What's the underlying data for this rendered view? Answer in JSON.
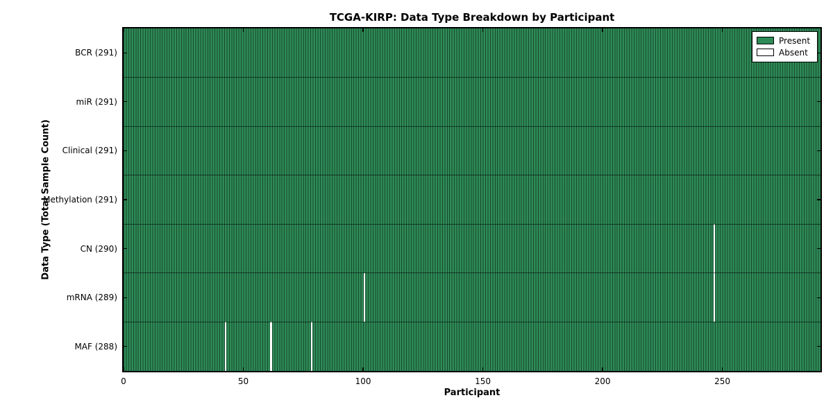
{
  "chart_data": {
    "type": "heatmap",
    "title": "TCGA-KIRP: Data Type Breakdown by Participant",
    "xlabel": "Participant",
    "ylabel": "Data Type (Total Sample Count)",
    "n_participants": 291,
    "xlim": [
      0,
      291
    ],
    "x_ticks": [
      0,
      50,
      100,
      150,
      200,
      250
    ],
    "grid": false,
    "legend": {
      "position": "upper right",
      "present_label": "Present",
      "absent_label": "Absent"
    },
    "colors": {
      "present": "#2e8b57",
      "absent": "#ffffff",
      "cell_edge": "#1b5334",
      "frame": "#000000",
      "background": "#ffffff"
    },
    "rows": [
      {
        "data_type": "BCR",
        "label": "BCR (291)",
        "total_samples": 291,
        "absent_participants": []
      },
      {
        "data_type": "miR",
        "label": "miR (291)",
        "total_samples": 291,
        "absent_participants": []
      },
      {
        "data_type": "Clinical",
        "label": "Clinical (291)",
        "total_samples": 291,
        "absent_participants": []
      },
      {
        "data_type": "Methylation",
        "label": "Methylation (291)",
        "total_samples": 291,
        "absent_participants": []
      },
      {
        "data_type": "CN",
        "label": "CN (290)",
        "total_samples": 290,
        "absent_participants": [
          246
        ]
      },
      {
        "data_type": "mRNA",
        "label": "mRNA (289)",
        "total_samples": 289,
        "absent_participants": [
          100,
          246
        ]
      },
      {
        "data_type": "MAF",
        "label": "MAF (288)",
        "total_samples": 288,
        "absent_participants": [
          42,
          61,
          78
        ]
      }
    ]
  }
}
